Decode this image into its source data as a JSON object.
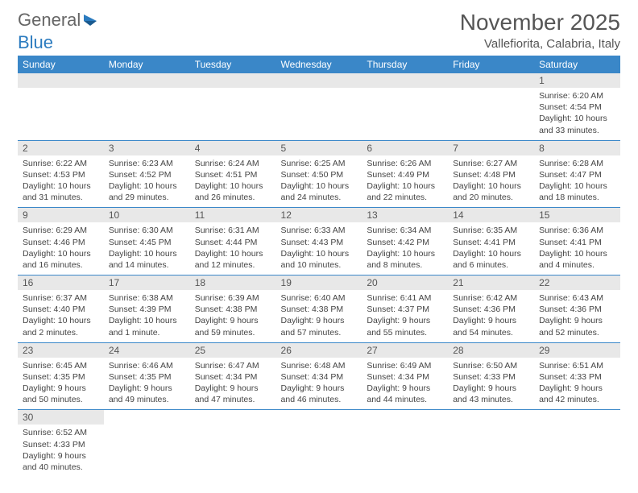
{
  "logo": {
    "text1": "General",
    "text2": "Blue"
  },
  "title": "November 2025",
  "location": "Vallefiorita, Calabria, Italy",
  "colors": {
    "header_bg": "#3a87c8",
    "bar_bg": "#e8e8e8",
    "rule": "#3a87c8"
  },
  "weekdays": [
    "Sunday",
    "Monday",
    "Tuesday",
    "Wednesday",
    "Thursday",
    "Friday",
    "Saturday"
  ],
  "weeks": [
    [
      null,
      null,
      null,
      null,
      null,
      null,
      {
        "n": "1",
        "sr": "Sunrise: 6:20 AM",
        "ss": "Sunset: 4:54 PM",
        "dl": "Daylight: 10 hours and 33 minutes."
      }
    ],
    [
      {
        "n": "2",
        "sr": "Sunrise: 6:22 AM",
        "ss": "Sunset: 4:53 PM",
        "dl": "Daylight: 10 hours and 31 minutes."
      },
      {
        "n": "3",
        "sr": "Sunrise: 6:23 AM",
        "ss": "Sunset: 4:52 PM",
        "dl": "Daylight: 10 hours and 29 minutes."
      },
      {
        "n": "4",
        "sr": "Sunrise: 6:24 AM",
        "ss": "Sunset: 4:51 PM",
        "dl": "Daylight: 10 hours and 26 minutes."
      },
      {
        "n": "5",
        "sr": "Sunrise: 6:25 AM",
        "ss": "Sunset: 4:50 PM",
        "dl": "Daylight: 10 hours and 24 minutes."
      },
      {
        "n": "6",
        "sr": "Sunrise: 6:26 AM",
        "ss": "Sunset: 4:49 PM",
        "dl": "Daylight: 10 hours and 22 minutes."
      },
      {
        "n": "7",
        "sr": "Sunrise: 6:27 AM",
        "ss": "Sunset: 4:48 PM",
        "dl": "Daylight: 10 hours and 20 minutes."
      },
      {
        "n": "8",
        "sr": "Sunrise: 6:28 AM",
        "ss": "Sunset: 4:47 PM",
        "dl": "Daylight: 10 hours and 18 minutes."
      }
    ],
    [
      {
        "n": "9",
        "sr": "Sunrise: 6:29 AM",
        "ss": "Sunset: 4:46 PM",
        "dl": "Daylight: 10 hours and 16 minutes."
      },
      {
        "n": "10",
        "sr": "Sunrise: 6:30 AM",
        "ss": "Sunset: 4:45 PM",
        "dl": "Daylight: 10 hours and 14 minutes."
      },
      {
        "n": "11",
        "sr": "Sunrise: 6:31 AM",
        "ss": "Sunset: 4:44 PM",
        "dl": "Daylight: 10 hours and 12 minutes."
      },
      {
        "n": "12",
        "sr": "Sunrise: 6:33 AM",
        "ss": "Sunset: 4:43 PM",
        "dl": "Daylight: 10 hours and 10 minutes."
      },
      {
        "n": "13",
        "sr": "Sunrise: 6:34 AM",
        "ss": "Sunset: 4:42 PM",
        "dl": "Daylight: 10 hours and 8 minutes."
      },
      {
        "n": "14",
        "sr": "Sunrise: 6:35 AM",
        "ss": "Sunset: 4:41 PM",
        "dl": "Daylight: 10 hours and 6 minutes."
      },
      {
        "n": "15",
        "sr": "Sunrise: 6:36 AM",
        "ss": "Sunset: 4:41 PM",
        "dl": "Daylight: 10 hours and 4 minutes."
      }
    ],
    [
      {
        "n": "16",
        "sr": "Sunrise: 6:37 AM",
        "ss": "Sunset: 4:40 PM",
        "dl": "Daylight: 10 hours and 2 minutes."
      },
      {
        "n": "17",
        "sr": "Sunrise: 6:38 AM",
        "ss": "Sunset: 4:39 PM",
        "dl": "Daylight: 10 hours and 1 minute."
      },
      {
        "n": "18",
        "sr": "Sunrise: 6:39 AM",
        "ss": "Sunset: 4:38 PM",
        "dl": "Daylight: 9 hours and 59 minutes."
      },
      {
        "n": "19",
        "sr": "Sunrise: 6:40 AM",
        "ss": "Sunset: 4:38 PM",
        "dl": "Daylight: 9 hours and 57 minutes."
      },
      {
        "n": "20",
        "sr": "Sunrise: 6:41 AM",
        "ss": "Sunset: 4:37 PM",
        "dl": "Daylight: 9 hours and 55 minutes."
      },
      {
        "n": "21",
        "sr": "Sunrise: 6:42 AM",
        "ss": "Sunset: 4:36 PM",
        "dl": "Daylight: 9 hours and 54 minutes."
      },
      {
        "n": "22",
        "sr": "Sunrise: 6:43 AM",
        "ss": "Sunset: 4:36 PM",
        "dl": "Daylight: 9 hours and 52 minutes."
      }
    ],
    [
      {
        "n": "23",
        "sr": "Sunrise: 6:45 AM",
        "ss": "Sunset: 4:35 PM",
        "dl": "Daylight: 9 hours and 50 minutes."
      },
      {
        "n": "24",
        "sr": "Sunrise: 6:46 AM",
        "ss": "Sunset: 4:35 PM",
        "dl": "Daylight: 9 hours and 49 minutes."
      },
      {
        "n": "25",
        "sr": "Sunrise: 6:47 AM",
        "ss": "Sunset: 4:34 PM",
        "dl": "Daylight: 9 hours and 47 minutes."
      },
      {
        "n": "26",
        "sr": "Sunrise: 6:48 AM",
        "ss": "Sunset: 4:34 PM",
        "dl": "Daylight: 9 hours and 46 minutes."
      },
      {
        "n": "27",
        "sr": "Sunrise: 6:49 AM",
        "ss": "Sunset: 4:34 PM",
        "dl": "Daylight: 9 hours and 44 minutes."
      },
      {
        "n": "28",
        "sr": "Sunrise: 6:50 AM",
        "ss": "Sunset: 4:33 PM",
        "dl": "Daylight: 9 hours and 43 minutes."
      },
      {
        "n": "29",
        "sr": "Sunrise: 6:51 AM",
        "ss": "Sunset: 4:33 PM",
        "dl": "Daylight: 9 hours and 42 minutes."
      }
    ],
    [
      {
        "n": "30",
        "sr": "Sunrise: 6:52 AM",
        "ss": "Sunset: 4:33 PM",
        "dl": "Daylight: 9 hours and 40 minutes."
      },
      null,
      null,
      null,
      null,
      null,
      null
    ]
  ]
}
